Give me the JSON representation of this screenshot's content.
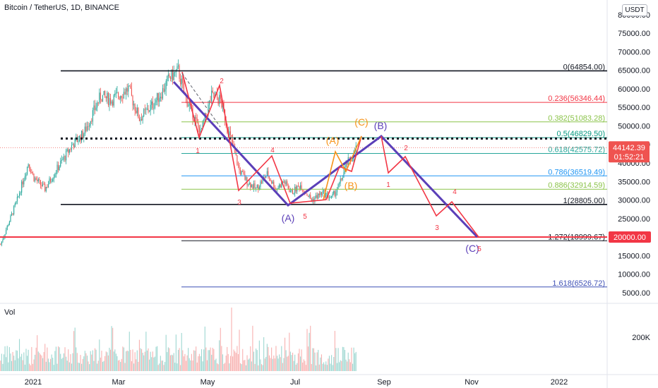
{
  "header": {
    "title": "Bitcoin / TetherUS, 1D, BINANCE",
    "unit": "USDT"
  },
  "volume_panel": {
    "label": "Vol",
    "tick_label": "200K"
  },
  "colors": {
    "up": "#26a69a",
    "down": "#ef5350",
    "waves_purple": "#5b3fb8",
    "waves_red": "#f23645",
    "waves_orange": "#f7931a",
    "price_tag": "#ef5350",
    "level_tag": "#f23645"
  },
  "chart_data": {
    "type": "candlestick",
    "symbol": "Bitcoin / TetherUS",
    "interval": "1D",
    "exchange": "BINANCE",
    "x_ticks": [
      "2021",
      "Mar",
      "May",
      "Jul",
      "Sep",
      "Nov",
      "2022"
    ],
    "y_ticks": [
      "80000.00",
      "75000.00",
      "70000.00",
      "65000.00",
      "60000.00",
      "55000.00",
      "50000.00",
      "45000.00",
      "40000.00",
      "35000.00",
      "30000.00",
      "25000.00",
      "20000.00",
      "15000.00",
      "10000.00",
      "5000.00"
    ],
    "ylim": [
      3000,
      85000
    ],
    "last_price": "44142.39",
    "countdown": "01:52:21",
    "horizontal_level": {
      "value": 20000,
      "label": "20000.00"
    },
    "dotted_level": 46600,
    "fib_levels": [
      {
        "ratio": "0",
        "value": 64854.0,
        "label": "0(64854.00)",
        "color": "#131722"
      },
      {
        "ratio": "0.236",
        "value": 56346.44,
        "label": "0.236(56346.44)",
        "color": "#f23645"
      },
      {
        "ratio": "0.382",
        "value": 51083.28,
        "label": "0.382(51083.28)",
        "color": "#8bc34a"
      },
      {
        "ratio": "0.5",
        "value": 46829.5,
        "label": "0.5(46829.50)",
        "color": "#089981"
      },
      {
        "ratio": "0.618",
        "value": 42575.72,
        "label": "0.618(42575.72)",
        "color": "#26a69a"
      },
      {
        "ratio": "0.786",
        "value": 36519.49,
        "label": "0.786(36519.49)",
        "color": "#2196f3"
      },
      {
        "ratio": "0.886",
        "value": 32914.59,
        "label": "0.886(32914.59)",
        "color": "#8bc34a"
      },
      {
        "ratio": "1",
        "value": 28805.0,
        "label": "1(28805.00)",
        "color": "#131722"
      },
      {
        "ratio": "1.272",
        "value": 18999.67,
        "label": "1.272(18999.67)",
        "color": "#131722"
      },
      {
        "ratio": "1.618",
        "value": 6526.72,
        "label": "1.618(6526.72)",
        "color": "#3f51b5"
      }
    ],
    "wave_labels": [
      {
        "text": "(A)",
        "color": "#5b3fb8",
        "size": 14
      },
      {
        "text": "(B)",
        "color": "#5b3fb8",
        "size": 14
      },
      {
        "text": "(C)",
        "color": "#5b3fb8",
        "size": 14
      },
      {
        "text": "(A)",
        "color": "#f7931a",
        "size": 14
      },
      {
        "text": "(B)",
        "color": "#f7931a",
        "size": 14
      },
      {
        "text": "(C)",
        "color": "#f7931a",
        "size": 14
      },
      {
        "text": "1",
        "color": "#f23645",
        "size": 10
      },
      {
        "text": "2",
        "color": "#f23645",
        "size": 10
      },
      {
        "text": "3",
        "color": "#f23645",
        "size": 10
      },
      {
        "text": "4",
        "color": "#f23645",
        "size": 10
      },
      {
        "text": "5",
        "color": "#f23645",
        "size": 10
      },
      {
        "text": "1",
        "color": "#f23645",
        "size": 10
      },
      {
        "text": "2",
        "color": "#f23645",
        "size": 10
      },
      {
        "text": "3",
        "color": "#f23645",
        "size": 10
      },
      {
        "text": "4",
        "color": "#f23645",
        "size": 10
      },
      {
        "text": "5",
        "color": "#f23645",
        "size": 10
      }
    ]
  }
}
